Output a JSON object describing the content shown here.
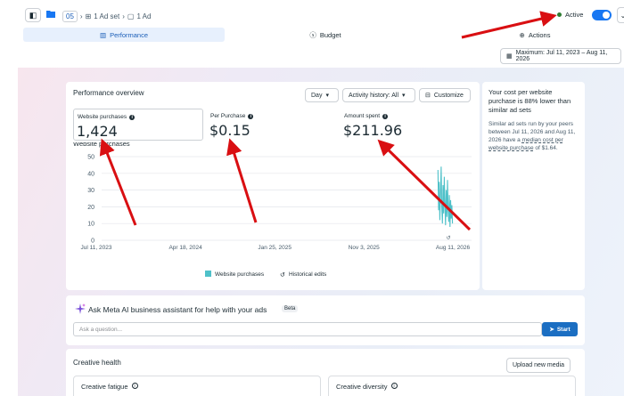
{
  "topbar": {
    "crumb_campaign": "05",
    "crumb_adset": "1 Ad set",
    "crumb_ad": "1 Ad",
    "status": "Active"
  },
  "tabs": [
    {
      "label": "Performance",
      "active": true
    },
    {
      "label": "Budget",
      "active": false
    },
    {
      "label": "Actions",
      "active": false
    }
  ],
  "date_range": "Maximum: Jul 11, 2023 – Aug 11, 2026",
  "overview": {
    "title": "Performance overview",
    "controls": {
      "day": "Day",
      "activity": "Activity history: All",
      "customize": "Customize"
    },
    "metrics": [
      {
        "label": "Website purchases",
        "value": "1,424"
      },
      {
        "label": "Per Purchase",
        "value": "$0.15"
      },
      {
        "label": "Amount spent",
        "value": "$211.96"
      }
    ]
  },
  "chart_data": {
    "type": "line",
    "title": "Website purchases",
    "xlabel": "",
    "ylabel": "",
    "ylim": [
      0,
      50
    ],
    "yticks": [
      0,
      10,
      20,
      30,
      40,
      50
    ],
    "xticks": [
      "Jul 11, 2023",
      "Apr 18, 2024",
      "Jan 25, 2025",
      "Nov 3, 2025",
      "Aug 11, 2026"
    ],
    "grid": true,
    "series": [
      {
        "name": "Website purchases",
        "color": "#4fc1c9",
        "x": [
          "2026-06-25",
          "2026-06-27",
          "2026-06-29",
          "2026-07-01",
          "2026-07-03",
          "2026-07-05",
          "2026-07-07",
          "2026-07-09",
          "2026-07-11",
          "2026-07-13",
          "2026-07-15",
          "2026-07-17",
          "2026-07-19",
          "2026-07-21",
          "2026-07-23",
          "2026-07-25",
          "2026-07-27",
          "2026-07-29",
          "2026-07-31",
          "2026-08-02",
          "2026-08-04",
          "2026-08-06",
          "2026-08-08",
          "2026-08-10"
        ],
        "values": [
          42,
          18,
          35,
          12,
          28,
          44,
          20,
          10,
          33,
          16,
          38,
          22,
          9,
          30,
          14,
          36,
          19,
          11,
          27,
          8,
          24,
          13,
          21,
          10
        ]
      }
    ],
    "legend": [
      "Website purchases",
      "Historical edits"
    ],
    "legend_position": "bottom"
  },
  "side": {
    "headline": "Your cost per website purchase is 88% lower than similar ad sets",
    "body_pre": "Similar ad sets run by your peers between Jul 11, 2026 and Aug 11, 2026 have a ",
    "body_link": "median cost per website purchase",
    "body_post": " of $1.64."
  },
  "ai": {
    "title": "Ask Meta AI business assistant for help with your ads",
    "badge": "Beta",
    "placeholder": "Ask a question...",
    "start": "Start"
  },
  "health": {
    "title": "Creative health",
    "upload": "Upload new media",
    "fatigue": "Creative fatigue",
    "diversity": "Creative diversity"
  },
  "colors": {
    "accent": "#1877f2",
    "series": "#4fc1c9",
    "arrow": "#d90f12",
    "status": "#2e7d32"
  }
}
